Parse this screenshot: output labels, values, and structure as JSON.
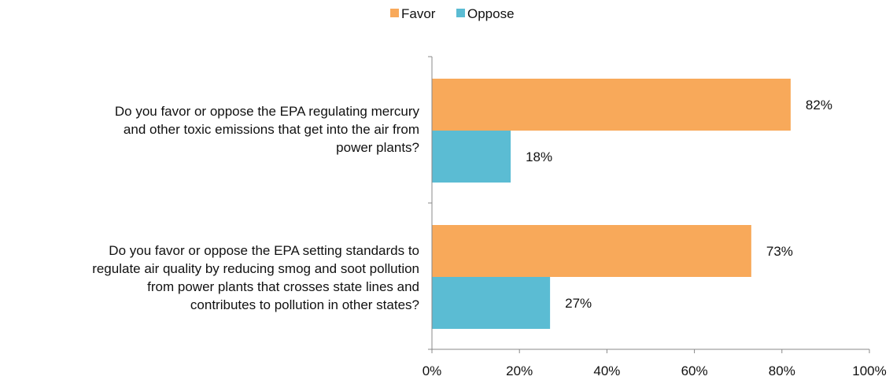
{
  "chart_data": {
    "type": "bar",
    "orientation": "horizontal",
    "categories": [
      "Do you favor or oppose the EPA regulating mercury\nand other toxic emissions that get into the air from\npower plants?",
      "Do you favor or oppose the EPA setting standards to\nregulate air quality by reducing smog and soot pollution\nfrom power plants that crosses state lines and\ncontributes to pollution in other states?"
    ],
    "series": [
      {
        "name": "Favor",
        "color": "#F8A95A",
        "values": [
          82,
          73
        ],
        "labels": [
          "82%",
          "73%"
        ]
      },
      {
        "name": "Oppose",
        "color": "#5BBCD3",
        "values": [
          18,
          27
        ],
        "labels": [
          "18%",
          "27%"
        ]
      }
    ],
    "xlim": [
      0,
      100
    ],
    "x_ticks": [
      0,
      20,
      40,
      60,
      80,
      100
    ],
    "x_tick_labels": [
      "0%",
      "20%",
      "40%",
      "60%",
      "80%",
      "100%"
    ],
    "grid": false,
    "legend_position": "top-center",
    "title": "",
    "xlabel": "",
    "ylabel": ""
  }
}
